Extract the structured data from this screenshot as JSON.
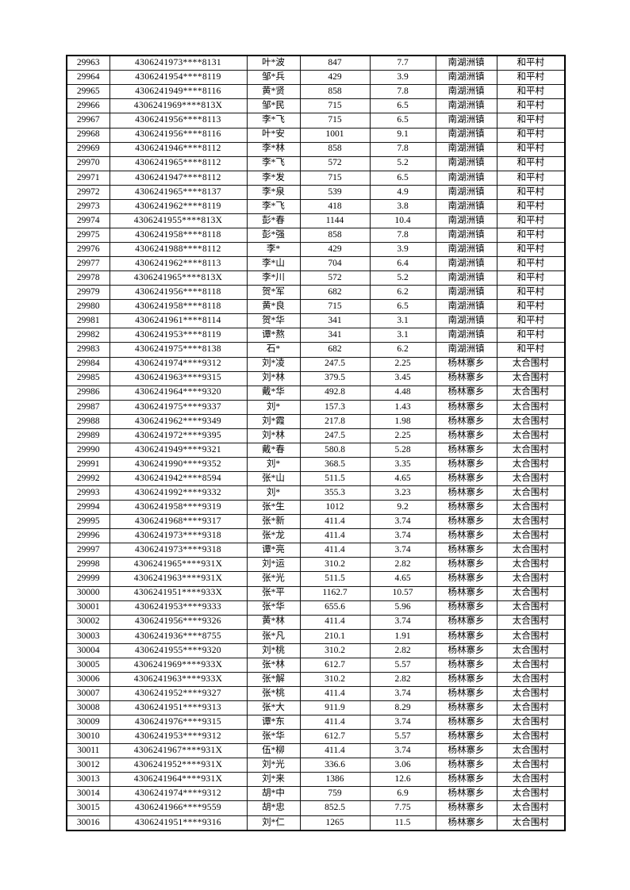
{
  "colors": {
    "page_background": "#ffffff",
    "table_border": "#000000",
    "text": "#000000"
  },
  "table": {
    "columns": [
      "seq",
      "id_masked",
      "name",
      "value1",
      "value2",
      "town",
      "village"
    ],
    "rows": [
      [
        "29963",
        "4306241973****8131",
        "叶*波",
        "847",
        "7.7",
        "南湖洲镇",
        "和平村"
      ],
      [
        "29964",
        "4306241954****8119",
        "邹*兵",
        "429",
        "3.9",
        "南湖洲镇",
        "和平村"
      ],
      [
        "29965",
        "4306241949****8116",
        "黄*贤",
        "858",
        "7.8",
        "南湖洲镇",
        "和平村"
      ],
      [
        "29966",
        "4306241969****813X",
        "邹*民",
        "715",
        "6.5",
        "南湖洲镇",
        "和平村"
      ],
      [
        "29967",
        "4306241956****8113",
        "李*飞",
        "715",
        "6.5",
        "南湖洲镇",
        "和平村"
      ],
      [
        "29968",
        "4306241956****8116",
        "叶*安",
        "1001",
        "9.1",
        "南湖洲镇",
        "和平村"
      ],
      [
        "29969",
        "4306241946****8112",
        "李*林",
        "858",
        "7.8",
        "南湖洲镇",
        "和平村"
      ],
      [
        "29970",
        "4306241965****8112",
        "李*飞",
        "572",
        "5.2",
        "南湖洲镇",
        "和平村"
      ],
      [
        "29971",
        "4306241947****8112",
        "李*发",
        "715",
        "6.5",
        "南湖洲镇",
        "和平村"
      ],
      [
        "29972",
        "4306241965****8137",
        "李*泉",
        "539",
        "4.9",
        "南湖洲镇",
        "和平村"
      ],
      [
        "29973",
        "4306241962****8119",
        "李*飞",
        "418",
        "3.8",
        "南湖洲镇",
        "和平村"
      ],
      [
        "29974",
        "4306241955****813X",
        "彭*春",
        "1144",
        "10.4",
        "南湖洲镇",
        "和平村"
      ],
      [
        "29975",
        "4306241958****8118",
        "彭*强",
        "858",
        "7.8",
        "南湖洲镇",
        "和平村"
      ],
      [
        "29976",
        "4306241988****8112",
        "李*",
        "429",
        "3.9",
        "南湖洲镇",
        "和平村"
      ],
      [
        "29977",
        "4306241962****8113",
        "李*山",
        "704",
        "6.4",
        "南湖洲镇",
        "和平村"
      ],
      [
        "29978",
        "4306241965****813X",
        "李*川",
        "572",
        "5.2",
        "南湖洲镇",
        "和平村"
      ],
      [
        "29979",
        "4306241956****8118",
        "贺*军",
        "682",
        "6.2",
        "南湖洲镇",
        "和平村"
      ],
      [
        "29980",
        "4306241958****8118",
        "黄*良",
        "715",
        "6.5",
        "南湖洲镇",
        "和平村"
      ],
      [
        "29981",
        "4306241961****8114",
        "贺*华",
        "341",
        "3.1",
        "南湖洲镇",
        "和平村"
      ],
      [
        "29982",
        "4306241953****8119",
        "谭*熬",
        "341",
        "3.1",
        "南湖洲镇",
        "和平村"
      ],
      [
        "29983",
        "4306241975****8138",
        "石*",
        "682",
        "6.2",
        "南湖洲镇",
        "和平村"
      ],
      [
        "29984",
        "4306241974****9312",
        "刘*凌",
        "247.5",
        "2.25",
        "杨林寨乡",
        "太合围村"
      ],
      [
        "29985",
        "4306241963****9315",
        "刘*林",
        "379.5",
        "3.45",
        "杨林寨乡",
        "太合围村"
      ],
      [
        "29986",
        "4306241964****9320",
        "戴*华",
        "492.8",
        "4.48",
        "杨林寨乡",
        "太合围村"
      ],
      [
        "29987",
        "4306241975****9337",
        "刘*",
        "157.3",
        "1.43",
        "杨林寨乡",
        "太合围村"
      ],
      [
        "29988",
        "4306241962****9349",
        "刘*霞",
        "217.8",
        "1.98",
        "杨林寨乡",
        "太合围村"
      ],
      [
        "29989",
        "4306241972****9395",
        "刘*林",
        "247.5",
        "2.25",
        "杨林寨乡",
        "太合围村"
      ],
      [
        "29990",
        "4306241949****9321",
        "戴*春",
        "580.8",
        "5.28",
        "杨林寨乡",
        "太合围村"
      ],
      [
        "29991",
        "4306241990****9352",
        "刘*",
        "368.5",
        "3.35",
        "杨林寨乡",
        "太合围村"
      ],
      [
        "29992",
        "4306241942****8594",
        "张*山",
        "511.5",
        "4.65",
        "杨林寨乡",
        "太合围村"
      ],
      [
        "29993",
        "4306241992****9332",
        "刘*",
        "355.3",
        "3.23",
        "杨林寨乡",
        "太合围村"
      ],
      [
        "29994",
        "4306241958****9319",
        "张*生",
        "1012",
        "9.2",
        "杨林寨乡",
        "太合围村"
      ],
      [
        "29995",
        "4306241968****9317",
        "张*新",
        "411.4",
        "3.74",
        "杨林寨乡",
        "太合围村"
      ],
      [
        "29996",
        "4306241973****9318",
        "张*龙",
        "411.4",
        "3.74",
        "杨林寨乡",
        "太合围村"
      ],
      [
        "29997",
        "4306241973****9318",
        "谭*亮",
        "411.4",
        "3.74",
        "杨林寨乡",
        "太合围村"
      ],
      [
        "29998",
        "4306241965****931X",
        "刘*运",
        "310.2",
        "2.82",
        "杨林寨乡",
        "太合围村"
      ],
      [
        "29999",
        "4306241963****931X",
        "张*光",
        "511.5",
        "4.65",
        "杨林寨乡",
        "太合围村"
      ],
      [
        "30000",
        "4306241951****933X",
        "张*平",
        "1162.7",
        "10.57",
        "杨林寨乡",
        "太合围村"
      ],
      [
        "30001",
        "4306241953****9333",
        "张*华",
        "655.6",
        "5.96",
        "杨林寨乡",
        "太合围村"
      ],
      [
        "30002",
        "4306241956****9326",
        "黄*林",
        "411.4",
        "3.74",
        "杨林寨乡",
        "太合围村"
      ],
      [
        "30003",
        "4306241936****8755",
        "张*凡",
        "210.1",
        "1.91",
        "杨林寨乡",
        "太合围村"
      ],
      [
        "30004",
        "4306241955****9320",
        "刘*桃",
        "310.2",
        "2.82",
        "杨林寨乡",
        "太合围村"
      ],
      [
        "30005",
        "4306241969****933X",
        "张*林",
        "612.7",
        "5.57",
        "杨林寨乡",
        "太合围村"
      ],
      [
        "30006",
        "4306241963****933X",
        "张*解",
        "310.2",
        "2.82",
        "杨林寨乡",
        "太合围村"
      ],
      [
        "30007",
        "4306241952****9327",
        "张*桃",
        "411.4",
        "3.74",
        "杨林寨乡",
        "太合围村"
      ],
      [
        "30008",
        "4306241951****9313",
        "张*大",
        "911.9",
        "8.29",
        "杨林寨乡",
        "太合围村"
      ],
      [
        "30009",
        "4306241976****9315",
        "谭*东",
        "411.4",
        "3.74",
        "杨林寨乡",
        "太合围村"
      ],
      [
        "30010",
        "4306241953****9312",
        "张*华",
        "612.7",
        "5.57",
        "杨林寨乡",
        "太合围村"
      ],
      [
        "30011",
        "4306241967****931X",
        "伍*柳",
        "411.4",
        "3.74",
        "杨林寨乡",
        "太合围村"
      ],
      [
        "30012",
        "4306241952****931X",
        "刘*光",
        "336.6",
        "3.06",
        "杨林寨乡",
        "太合围村"
      ],
      [
        "30013",
        "4306241964****931X",
        "刘*来",
        "1386",
        "12.6",
        "杨林寨乡",
        "太合围村"
      ],
      [
        "30014",
        "4306241974****9312",
        "胡*中",
        "759",
        "6.9",
        "杨林寨乡",
        "太合围村"
      ],
      [
        "30015",
        "4306241966****9559",
        "胡*忠",
        "852.5",
        "7.75",
        "杨林寨乡",
        "太合围村"
      ],
      [
        "30016",
        "4306241951****9316",
        "刘*仁",
        "1265",
        "11.5",
        "杨林寨乡",
        "太合围村"
      ]
    ]
  }
}
